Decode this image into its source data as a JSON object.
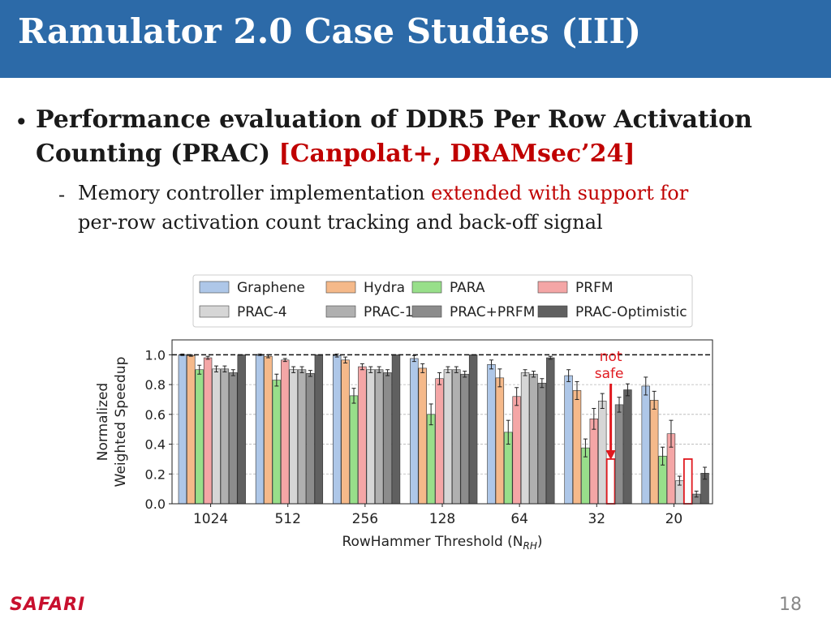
{
  "slide": {
    "title": "Ramulator 2.0 Case Studies (III)",
    "bullet": {
      "line1": "Performance evaluation of DDR5 Per Row Activation",
      "line2_text": "Counting (PRAC) ",
      "line2_citation": "[Canpolat+, DRAMsec’24]"
    },
    "sub_bullet": {
      "marker": "-",
      "line1_text": "Memory controller implementation ",
      "line1_highlight": "extended with support for",
      "line2_highlight": "per-row activation count tracking and back-off signal"
    },
    "footer": {
      "logo": "SAFARI",
      "page_number": "18"
    }
  },
  "chart_data": {
    "type": "bar",
    "categories": [
      "1024",
      "512",
      "256",
      "128",
      "64",
      "32",
      "20"
    ],
    "xlabel": "RowHammer Threshold (N",
    "xlabel_sub": "RH",
    "xlabel_close": ")",
    "ylabel_line1": "Normalized",
    "ylabel_line2": "Weighted Speedup",
    "ylim": [
      0,
      1.1
    ],
    "yticks": [
      "0.0",
      "0.2",
      "0.4",
      "0.6",
      "0.8",
      "1.0"
    ],
    "reference_line": 1.0,
    "grid": "horizontal-dashed",
    "legend_position": "top",
    "annotation": {
      "line1": "not",
      "line2": "safe",
      "category": "32",
      "color": "#e0191f"
    },
    "series": [
      {
        "name": "Graphene",
        "color": "#aec7e8",
        "values": [
          1.0,
          1.0,
          0.995,
          0.975,
          0.935,
          0.86,
          0.79
        ],
        "errors": [
          0.005,
          0.005,
          0.01,
          0.02,
          0.03,
          0.04,
          0.06
        ]
      },
      {
        "name": "Hydra",
        "color": "#f5b98a",
        "values": [
          0.995,
          0.99,
          0.965,
          0.91,
          0.845,
          0.76,
          0.695
        ],
        "errors": [
          0.005,
          0.01,
          0.02,
          0.03,
          0.06,
          0.06,
          0.06
        ]
      },
      {
        "name": "PARA",
        "color": "#98df8a",
        "values": [
          0.9,
          0.83,
          0.725,
          0.6,
          0.48,
          0.375,
          0.32
        ],
        "errors": [
          0.03,
          0.04,
          0.05,
          0.07,
          0.08,
          0.06,
          0.06
        ]
      },
      {
        "name": "PRFM",
        "color": "#f4a6a6",
        "values": [
          0.98,
          0.965,
          0.92,
          0.84,
          0.72,
          0.57,
          0.47
        ],
        "errors": [
          0.01,
          0.01,
          0.02,
          0.04,
          0.06,
          0.07,
          0.09
        ]
      },
      {
        "name": "PRAC-4",
        "color": "#d6d6d6",
        "values": [
          0.905,
          0.9,
          0.9,
          0.9,
          0.88,
          0.69,
          0.155
        ],
        "errors": [
          0.02,
          0.02,
          0.02,
          0.02,
          0.02,
          0.05,
          0.03
        ]
      },
      {
        "name": "PRAC-1",
        "color": "#b0b0b0",
        "values": [
          0.905,
          0.9,
          0.9,
          0.9,
          0.87,
          0.3,
          0.3
        ],
        "errors": [
          0.02,
          0.02,
          0.02,
          0.02,
          0.02,
          0.0,
          0.0
        ],
        "notSafe": [
          false,
          false,
          false,
          false,
          false,
          true,
          true
        ]
      },
      {
        "name": "PRAC+PRFM",
        "color": "#8c8c8c",
        "values": [
          0.88,
          0.875,
          0.88,
          0.87,
          0.81,
          0.665,
          0.065
        ],
        "errors": [
          0.02,
          0.02,
          0.02,
          0.02,
          0.03,
          0.05,
          0.02
        ]
      },
      {
        "name": "PRAC-Optimistic",
        "color": "#606060",
        "values": [
          1.0,
          1.0,
          1.0,
          1.0,
          0.98,
          0.765,
          0.205
        ],
        "errors": [
          0.0,
          0.0,
          0.0,
          0.0,
          0.01,
          0.04,
          0.04
        ]
      }
    ]
  }
}
